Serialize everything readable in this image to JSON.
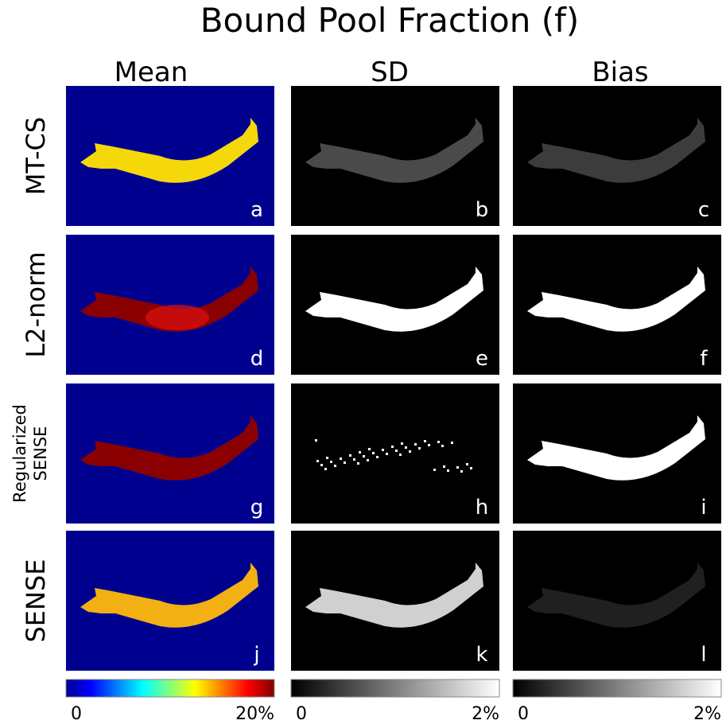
{
  "title": "Bound Pool Fraction (f)",
  "columns": [
    "Mean",
    "SD",
    "Bias"
  ],
  "rows": [
    "MT-CS",
    "L2-norm",
    [
      "Regularized",
      "SENSE"
    ],
    "SENSE"
  ],
  "panels": [
    "a",
    "b",
    "c",
    "d",
    "e",
    "f",
    "g",
    "h",
    "i",
    "j",
    "k",
    "l"
  ],
  "colorbars": [
    {
      "min": "0",
      "max": "20%"
    },
    {
      "min": "0",
      "max": "2%"
    },
    {
      "min": "0",
      "max": "2%"
    }
  ]
}
